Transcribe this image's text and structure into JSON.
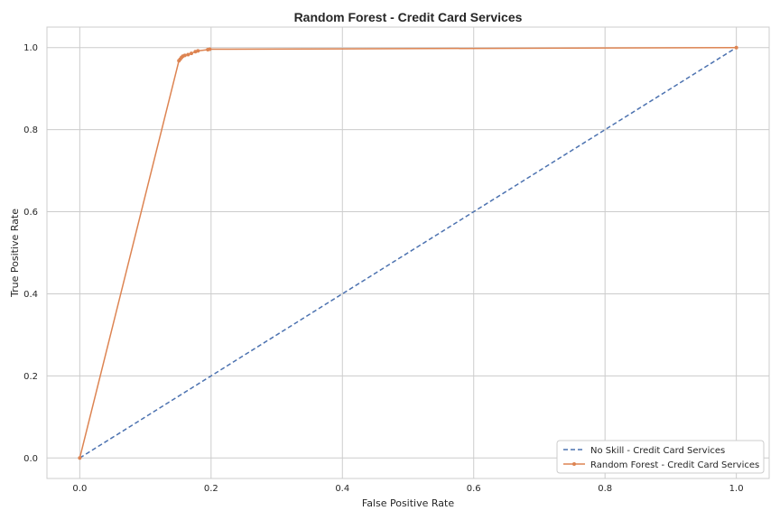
{
  "chart_data": {
    "type": "line",
    "title": "Random Forest - Credit Card Services",
    "xlabel": "False Positive Rate",
    "ylabel": "True Positive Rate",
    "xlim": [
      -0.05,
      1.05
    ],
    "ylim": [
      -0.05,
      1.05
    ],
    "xticks": [
      0.0,
      0.2,
      0.4,
      0.6,
      0.8,
      1.0
    ],
    "yticks": [
      0.0,
      0.2,
      0.4,
      0.6,
      0.8,
      1.0
    ],
    "xtick_labels": [
      "0.0",
      "0.2",
      "0.4",
      "0.6",
      "0.8",
      "1.0"
    ],
    "ytick_labels": [
      "0.0",
      "0.2",
      "0.4",
      "0.6",
      "0.8",
      "1.0"
    ],
    "grid": true,
    "legend_position": "lower-right",
    "series": [
      {
        "name": "No Skill - Credit Card Services",
        "style": "dashed",
        "marker": "none",
        "color": "#4c72b0",
        "x": [
          0.0,
          1.0
        ],
        "y": [
          0.0,
          1.0
        ]
      },
      {
        "name": "Random Forest - Credit Card Services",
        "style": "solid",
        "marker": "dot",
        "color": "#dd8452",
        "x": [
          0.0,
          0.151,
          0.153,
          0.155,
          0.157,
          0.16,
          0.165,
          0.17,
          0.176,
          0.18,
          0.195,
          0.198,
          1.0
        ],
        "y": [
          0.0,
          0.968,
          0.972,
          0.976,
          0.979,
          0.981,
          0.983,
          0.986,
          0.99,
          0.992,
          0.995,
          0.996,
          1.0
        ]
      }
    ]
  }
}
